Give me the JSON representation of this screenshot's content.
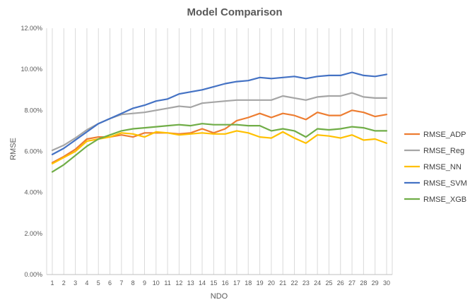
{
  "chart_data": {
    "type": "line",
    "title": "Model Comparison",
    "xlabel": "NDO",
    "ylabel": "RMSE",
    "ylim": [
      0,
      0.12
    ],
    "y_tick_labels": [
      "0.00%",
      "2.00%",
      "4.00%",
      "6.00%",
      "8.00%",
      "10.00%",
      "12.00%"
    ],
    "x": [
      1,
      2,
      3,
      4,
      5,
      6,
      7,
      8,
      9,
      10,
      11,
      12,
      13,
      14,
      15,
      16,
      17,
      18,
      19,
      20,
      21,
      22,
      23,
      24,
      25,
      26,
      27,
      28,
      29,
      30
    ],
    "x_tick_labels": [
      "1",
      "2",
      "3",
      "4",
      "5",
      "6",
      "7",
      "8",
      "9",
      "10",
      "11",
      "12",
      "13",
      "14",
      "15",
      "16",
      "17",
      "18",
      "19",
      "20",
      "21",
      "22",
      "23",
      "24",
      "25",
      "26",
      "27",
      "28",
      "29",
      "30"
    ],
    "grid": "vertical",
    "legend_position": "right",
    "series": [
      {
        "name": "RMSE_ADP",
        "color": "#ED7D31",
        "values": [
          0.0545,
          0.0575,
          0.061,
          0.066,
          0.067,
          0.067,
          0.068,
          0.067,
          0.069,
          0.069,
          0.069,
          0.0685,
          0.069,
          0.071,
          0.069,
          0.071,
          0.075,
          0.0765,
          0.0785,
          0.0765,
          0.0785,
          0.0775,
          0.0755,
          0.079,
          0.0775,
          0.0775,
          0.08,
          0.079,
          0.077,
          0.078
        ]
      },
      {
        "name": "RMSE_Reg",
        "color": "#A5A5A5",
        "values": [
          0.0605,
          0.063,
          0.0665,
          0.0705,
          0.0735,
          0.076,
          0.078,
          0.0785,
          0.079,
          0.08,
          0.081,
          0.082,
          0.0815,
          0.0835,
          0.084,
          0.0845,
          0.085,
          0.085,
          0.085,
          0.085,
          0.087,
          0.086,
          0.085,
          0.0865,
          0.087,
          0.087,
          0.0885,
          0.0865,
          0.086,
          0.086
        ]
      },
      {
        "name": "RMSE_NN",
        "color": "#FFC000",
        "values": [
          0.054,
          0.057,
          0.06,
          0.065,
          0.066,
          0.067,
          0.069,
          0.0685,
          0.067,
          0.0695,
          0.069,
          0.068,
          0.0685,
          0.069,
          0.0685,
          0.0685,
          0.07,
          0.069,
          0.067,
          0.0665,
          0.0695,
          0.0665,
          0.064,
          0.068,
          0.0675,
          0.0665,
          0.068,
          0.0655,
          0.066,
          0.064
        ]
      },
      {
        "name": "RMSE_SVM",
        "color": "#4472C4",
        "values": [
          0.0585,
          0.0615,
          0.0655,
          0.0695,
          0.0735,
          0.076,
          0.0785,
          0.081,
          0.0825,
          0.0845,
          0.0855,
          0.088,
          0.089,
          0.09,
          0.0915,
          0.093,
          0.094,
          0.0945,
          0.096,
          0.0955,
          0.096,
          0.0965,
          0.0955,
          0.0965,
          0.097,
          0.097,
          0.0985,
          0.097,
          0.0965,
          0.0975
        ]
      },
      {
        "name": "RMSE_XGB",
        "color": "#70AD47",
        "values": [
          0.05,
          0.0535,
          0.058,
          0.0625,
          0.066,
          0.068,
          0.07,
          0.071,
          0.0715,
          0.072,
          0.0725,
          0.073,
          0.0725,
          0.0735,
          0.073,
          0.073,
          0.073,
          0.0725,
          0.0725,
          0.07,
          0.071,
          0.07,
          0.067,
          0.071,
          0.0705,
          0.071,
          0.072,
          0.0715,
          0.07,
          0.07
        ]
      }
    ]
  }
}
